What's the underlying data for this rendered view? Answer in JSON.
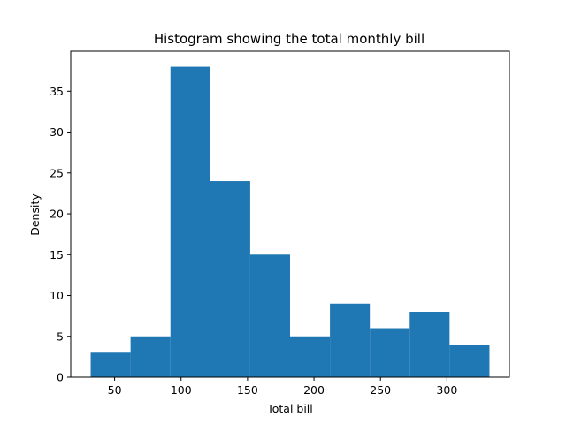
{
  "chart_data": {
    "type": "bar",
    "title": "Histogram showing the total monthly bill",
    "xlabel": "Total bill",
    "ylabel": "Density",
    "bin_edges": [
      32,
      62,
      92,
      122,
      152,
      182,
      212,
      242,
      272,
      302,
      332
    ],
    "values": [
      3,
      5,
      38,
      24,
      15,
      5,
      9,
      6,
      8,
      4
    ],
    "xlim": [
      17,
      347
    ],
    "ylim": [
      0,
      39.9
    ],
    "xticks": [
      50,
      100,
      150,
      200,
      250,
      300
    ],
    "yticks": [
      0,
      5,
      10,
      15,
      20,
      25,
      30,
      35
    ],
    "bar_color": "#1f77b4",
    "grid": false,
    "legend": null
  }
}
